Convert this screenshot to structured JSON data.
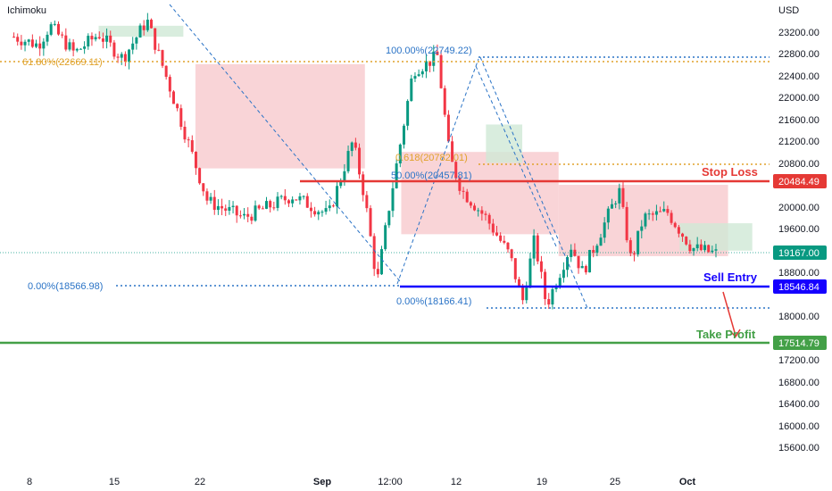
{
  "indicator_label": "Ichimoku",
  "currency": "USD",
  "colors": {
    "up": "#089981",
    "down": "#f23645",
    "cloud_red": "#f7c9cd",
    "cloud_green": "#cfe9d6",
    "fib_orange": "#e0a22a",
    "fib_blue": "#2a73c6",
    "stop": "#e53935",
    "entry": "#1500ff",
    "target": "#43a047",
    "last": "#089981"
  },
  "levels": {
    "stop_loss": {
      "label": "Stop Loss",
      "price": "20484.49"
    },
    "sell_entry": {
      "label": "Sell Entry",
      "price": "18546.84"
    },
    "take_profit": {
      "label": "Take Profit",
      "price": "17514.79"
    },
    "last_price": "19167.00"
  },
  "fib_labels": {
    "left_618": "61.80%(22669.11)",
    "left_0": "0.00%(18566.98)",
    "right_100": "100.00%(22749.22)",
    "right_618": "0.618(20782.01)",
    "right_50": "50.00%(20457.81)",
    "right_0": "0.00%(18166.41)"
  },
  "chart_data": {
    "type": "candlestick",
    "symbol_hint": "price in USD",
    "y_axis": {
      "ticks": [
        "23200.00",
        "22800.00",
        "22400.00",
        "22000.00",
        "21600.00",
        "21200.00",
        "20800.00",
        "20400.00",
        "20000.00",
        "19600.00",
        "19200.00",
        "18800.00",
        "18400.00",
        "18000.00",
        "17600.00",
        "17200.00",
        "16800.00",
        "16400.00",
        "16000.00",
        "15600.00"
      ],
      "ylim": [
        15350,
        23420
      ]
    },
    "x_axis": {
      "ticks": [
        "8",
        "15",
        "22",
        "Sep",
        "12:00",
        "12",
        "19",
        "25",
        "Oct"
      ]
    },
    "candle_path": [
      [
        1,
        23100
      ],
      [
        3,
        22950
      ],
      [
        4,
        23300
      ],
      [
        6,
        22800
      ],
      [
        8,
        23150
      ],
      [
        10,
        22700
      ],
      [
        12,
        23400
      ],
      [
        14,
        22100
      ],
      [
        17,
        20100
      ],
      [
        20,
        19800
      ],
      [
        24,
        20200
      ],
      [
        27,
        19850
      ],
      [
        29,
        21200
      ],
      [
        30,
        20150
      ],
      [
        31,
        18600
      ],
      [
        32,
        20000
      ],
      [
        34,
        22500
      ],
      [
        35,
        22600
      ],
      [
        36,
        22749
      ],
      [
        37,
        20900
      ],
      [
        38,
        20300
      ],
      [
        40,
        19800
      ],
      [
        42,
        19100
      ],
      [
        43,
        18250
      ],
      [
        44,
        19400
      ],
      [
        45,
        18200
      ],
      [
        47,
        19300
      ],
      [
        48,
        18800
      ],
      [
        50,
        19800
      ],
      [
        51,
        20300
      ],
      [
        52,
        19000
      ],
      [
        53,
        19800
      ],
      [
        55,
        19900
      ],
      [
        57,
        19250
      ],
      [
        59,
        19150
      ]
    ],
    "ichimoku_cloud": [
      {
        "x": [
          8,
          15
        ],
        "low": 23100,
        "high": 23300,
        "color": "green"
      },
      {
        "x": [
          16,
          30
        ],
        "low": 20700,
        "high": 22600,
        "color": "red"
      },
      {
        "x": [
          33,
          46
        ],
        "low": 19500,
        "high": 21000,
        "color": "red"
      },
      {
        "x": [
          40,
          43
        ],
        "low": 20800,
        "high": 21500,
        "color": "green"
      },
      {
        "x": [
          46,
          60
        ],
        "low": 19100,
        "high": 20400,
        "color": "red"
      },
      {
        "x": [
          56,
          62
        ],
        "low": 19200,
        "high": 19700,
        "color": "green"
      }
    ],
    "trade": {
      "stop_loss": 20484.49,
      "sell_entry": 18546.84,
      "take_profit": 17514.79,
      "last": 19167.0
    },
    "fibonacci": [
      {
        "label": "61.80%",
        "value": 22669.11
      },
      {
        "label": "0.00%",
        "value": 18566.98
      },
      {
        "label": "100.00%",
        "value": 22749.22
      },
      {
        "label": "0.618",
        "value": 20782.01
      },
      {
        "label": "50.00%",
        "value": 20457.81
      },
      {
        "label": "0.00%",
        "value": 18166.41
      }
    ]
  }
}
